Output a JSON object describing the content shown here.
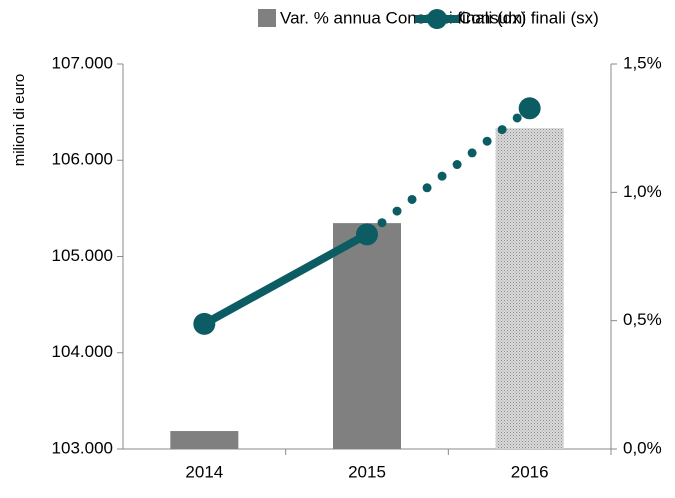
{
  "chart_data": {
    "type": "bar-line",
    "y_axis_label": "milioni di euro",
    "categories": [
      "2014",
      "2015",
      "2016"
    ],
    "series": [
      {
        "name": "Var. % annua Consumi finali (dx)",
        "type": "bar",
        "axis": "y2",
        "color": "#808080",
        "dotted_from": 2,
        "values": [
          0.07,
          0.88,
          1.25
        ]
      },
      {
        "name": "Consumi finali (sx)",
        "type": "line",
        "axis": "y",
        "color": "#0b5c63",
        "dotted_from": 1,
        "values": [
          104300,
          105230,
          106540
        ]
      }
    ],
    "ylim": [
      103000,
      107000
    ],
    "yticks": [
      {
        "value": 103000,
        "label": "103.000"
      },
      {
        "value": 104000,
        "label": "104.000"
      },
      {
        "value": 105000,
        "label": "105.000"
      },
      {
        "value": 106000,
        "label": "106.000"
      },
      {
        "value": 107000,
        "label": "107.000"
      }
    ],
    "y2lim": [
      0,
      1.5
    ],
    "y2ticks": [
      {
        "value": 0,
        "label": "0,0%"
      },
      {
        "value": 0.5,
        "label": "0,5%"
      },
      {
        "value": 1,
        "label": "1,0%"
      },
      {
        "value": 1.5,
        "label": "1,5%"
      }
    ]
  }
}
